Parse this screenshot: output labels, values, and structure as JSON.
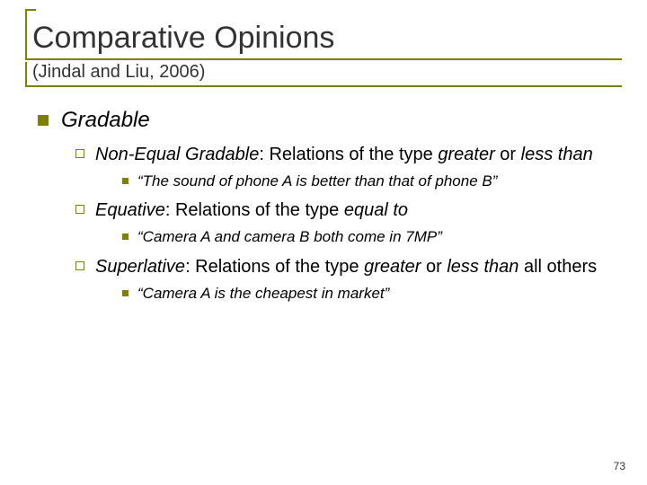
{
  "title": "Comparative Opinions",
  "subtitle": "(Jindal and Liu, 2006)",
  "gradable_label": "Gradable",
  "items": [
    {
      "head_prefix": "Non-Equal Gradable",
      "head_rest": ": Relations of the type ",
      "head_tail1": "greater",
      "head_mid": " or ",
      "head_tail2": "less than",
      "example": "“The sound of phone A is better than that of phone B”"
    },
    {
      "head_prefix": "Equative",
      "head_rest": ": Relations of the type ",
      "head_tail1": "equal to",
      "head_mid": "",
      "head_tail2": "",
      "example": "“Camera A and camera B both come in 7MP”"
    },
    {
      "head_prefix": "Superlative",
      "head_rest": ": Relations of the type ",
      "head_tail1": "greater",
      "head_mid": " or ",
      "head_tail2": "less than",
      "head_after": " all others",
      "example": "“Camera A is the cheapest in market”"
    }
  ],
  "page_number": "73",
  "colors": {
    "accent": "#808000",
    "text": "#000000",
    "title": "#333333",
    "background": "#ffffff"
  }
}
